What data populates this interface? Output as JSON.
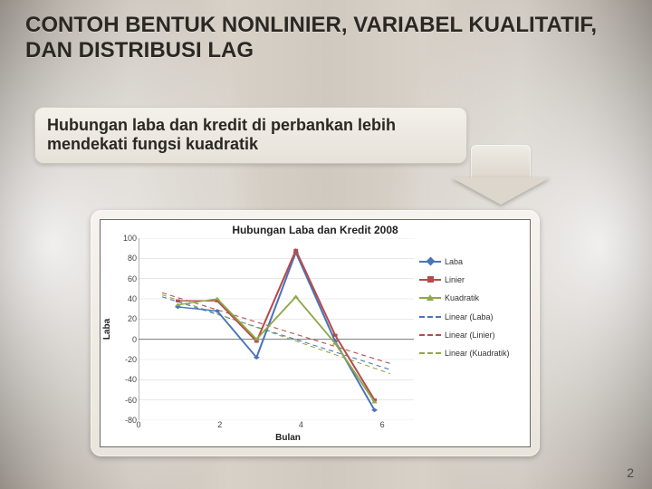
{
  "title": "CONTOH BENTUK NONLINIER, VARIABEL KUALITATIF, DAN DISTRIBUSI LAG",
  "subtitle": "Hubungan laba dan kredit di perbankan lebih mendekati fungsi kuadratik",
  "page_number": "2",
  "chart": {
    "title": "Hubungan Laba dan Kredit 2008",
    "xlabel": "Bulan",
    "ylabel": "Laba",
    "ylim": [
      -80,
      100
    ],
    "ytick_step": 20,
    "xlim": [
      0,
      7
    ],
    "xtick_step": 2,
    "background_color": "#ffffff",
    "grid_color": "#d9d9d9",
    "axis_color": "#888888",
    "zero_line_color": "#666666",
    "series": {
      "laba": {
        "label": "Laba",
        "color": "#4a74b8",
        "marker": "diamond",
        "x": [
          1,
          2,
          3,
          4,
          5,
          6
        ],
        "y": [
          32,
          28,
          -18,
          86,
          -2,
          -70
        ]
      },
      "linier": {
        "label": "Linier",
        "color": "#b84a4a",
        "marker": "square",
        "x": [
          1,
          2,
          3,
          4,
          5,
          6
        ],
        "y": [
          38,
          38,
          -2,
          88,
          4,
          -60
        ]
      },
      "kuadratik": {
        "label": "Kuadratik",
        "color": "#8fa84a",
        "marker": "triangle",
        "x": [
          1,
          2,
          3,
          4,
          5,
          6
        ],
        "y": [
          34,
          40,
          0,
          42,
          -4,
          -62
        ]
      },
      "trend_laba": {
        "label": "Linear (Laba)",
        "color": "#4a74b8",
        "dash": "4 3",
        "x": [
          0.6,
          6.4
        ],
        "y": [
          42,
          -30
        ]
      },
      "trend_linier": {
        "label": "Linear (Linier)",
        "color": "#b84a4a",
        "dash": "4 3",
        "x": [
          0.6,
          6.4
        ],
        "y": [
          46,
          -24
        ]
      },
      "trend_kuadratik": {
        "label": "Linear (Kuadratik)",
        "color": "#8fa84a",
        "dash": "4 3",
        "x": [
          0.6,
          6.4
        ],
        "y": [
          44,
          -34
        ]
      }
    },
    "legend_order": [
      "laba",
      "linier",
      "kuadratik",
      "trend_laba",
      "trend_linier",
      "trend_kuadratik"
    ]
  }
}
